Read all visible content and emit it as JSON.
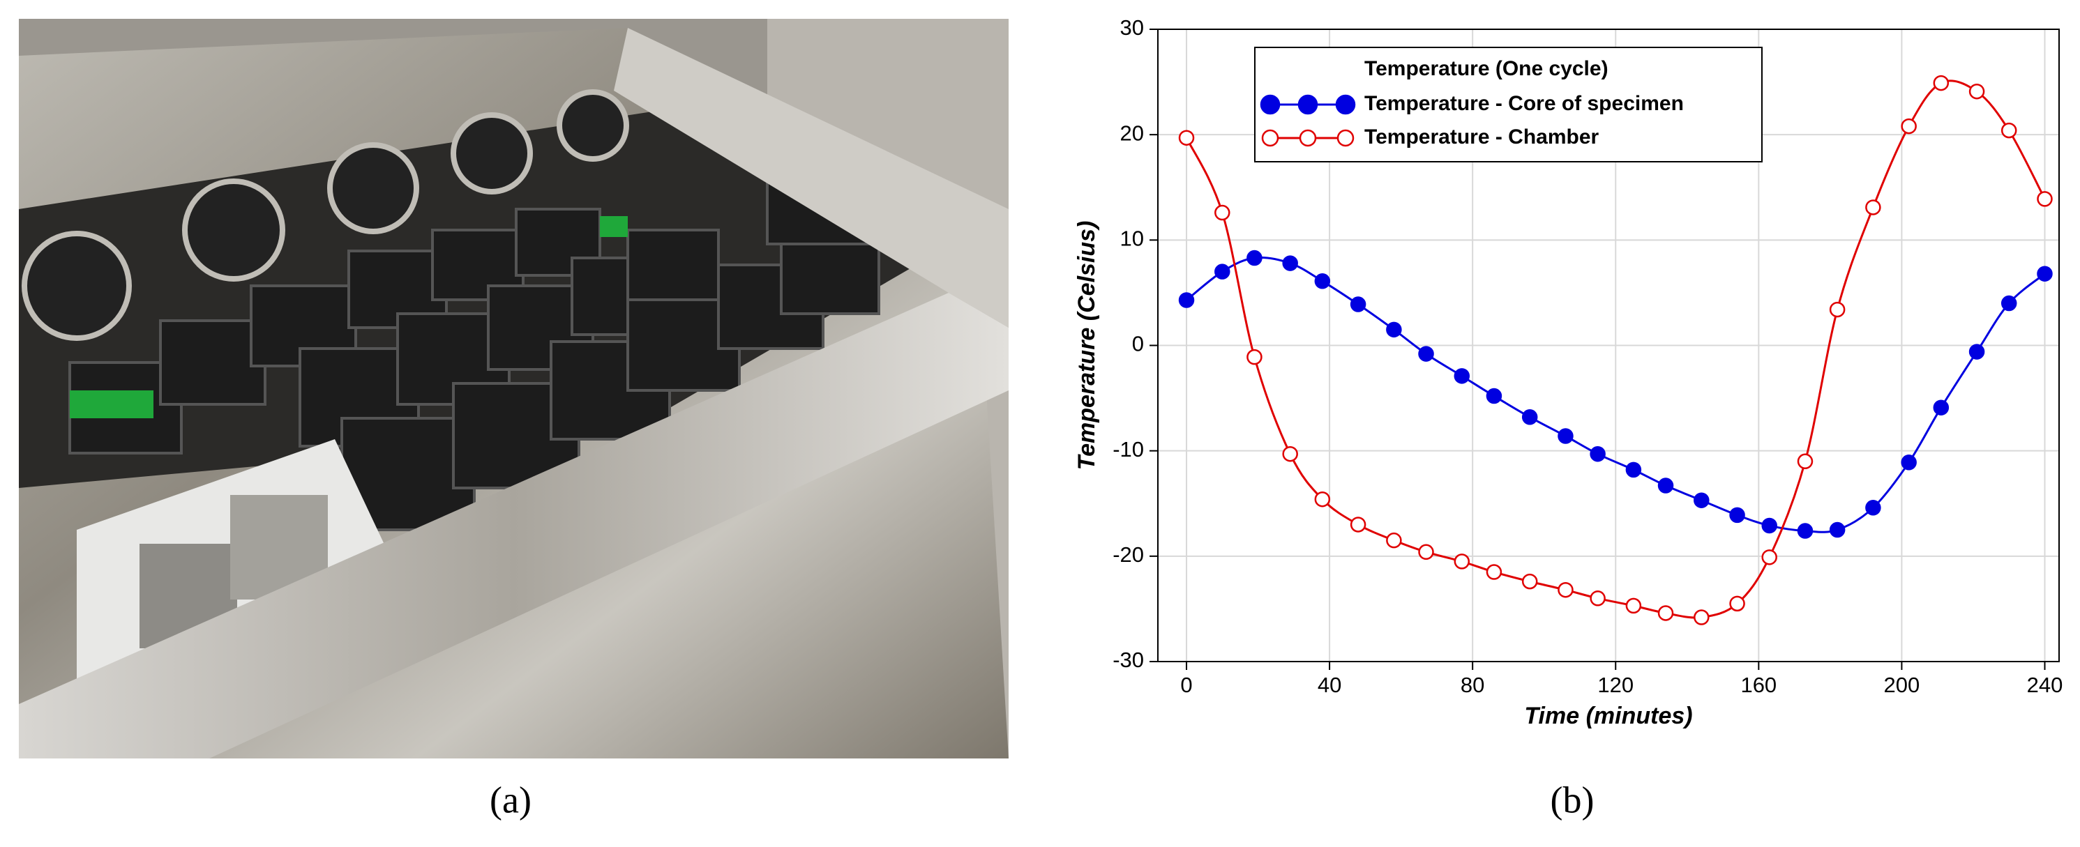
{
  "captions": [
    "(a)",
    "(b)"
  ],
  "chart_data": {
    "type": "line",
    "legend_title": "Temperature (One cycle)",
    "xlabel": "Time (minutes)",
    "ylabel": "Temperature (Celsius)",
    "x": [
      0,
      10,
      19,
      29,
      38,
      48,
      58,
      67,
      77,
      86,
      96,
      106,
      115,
      125,
      134,
      144,
      154,
      163,
      173,
      182,
      192,
      202,
      211,
      221,
      230,
      240
    ],
    "series": [
      {
        "name": "Temperature - Core of specimen",
        "color": "#0000e0",
        "marker": "filled",
        "values": [
          4.3,
          7,
          8.3,
          7.8,
          6.1,
          3.9,
          1.5,
          -0.8,
          -2.9,
          -4.8,
          -6.8,
          -8.6,
          -10.3,
          -11.8,
          -13.3,
          -14.7,
          -16.1,
          -17.1,
          -17.6,
          -17.5,
          -15.4,
          -11.1,
          -5.9,
          -0.6,
          4,
          6.8
        ]
      },
      {
        "name": "Temperature - Chamber",
        "color": "#e00000",
        "marker": "open",
        "values": [
          19.7,
          12.6,
          -1.1,
          -10.3,
          -14.6,
          -17,
          -18.5,
          -19.6,
          -20.5,
          -21.5,
          -22.4,
          -23.2,
          -24,
          -24.7,
          -25.4,
          -25.8,
          -24.5,
          -20.1,
          -11,
          3.4,
          13.1,
          20.8,
          24.9,
          24.1,
          20.4,
          13.9
        ]
      }
    ],
    "xlim": [
      -8,
      244
    ],
    "xticks": [
      0,
      40,
      80,
      120,
      160,
      200,
      240
    ],
    "ylim": [
      -30,
      30
    ],
    "yticks": [
      -30,
      -20,
      -10,
      0,
      10,
      20,
      30
    ],
    "grid": true
  }
}
